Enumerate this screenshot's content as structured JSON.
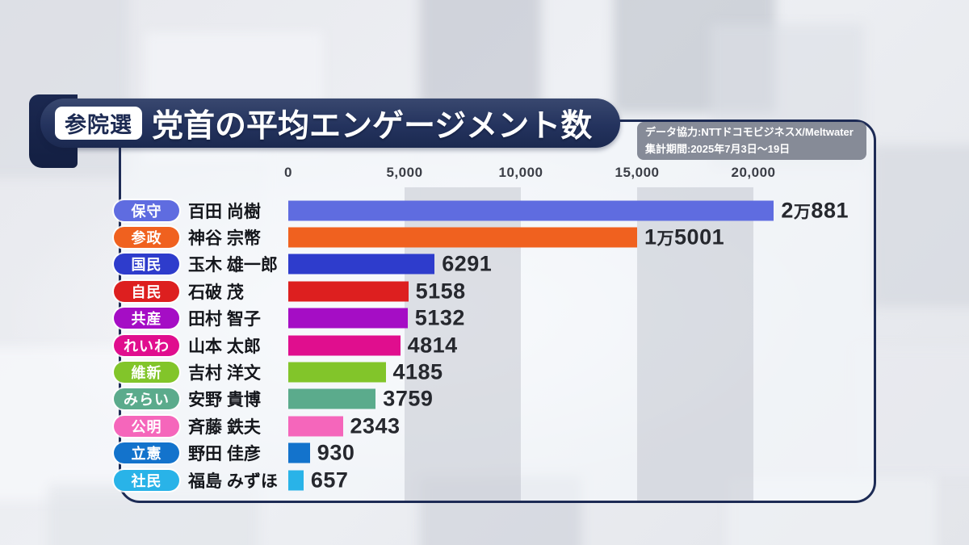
{
  "header": {
    "badge": "参院選",
    "title": "党首の平均エンゲージメント数"
  },
  "credit": {
    "line1": "データ協力:NTTドコモビジネスX/Meltwater",
    "line2": "集計期間:2025年7月3日〜19日"
  },
  "chart_data": {
    "type": "bar",
    "orientation": "horizontal",
    "title": "党首の平均エンゲージメント数",
    "axis": {
      "min": 0,
      "max": 20000,
      "ticks": [
        0,
        5000,
        10000,
        15000,
        20000
      ],
      "tick_labels": [
        "0",
        "5,000",
        "10,000",
        "15,000",
        "20,000"
      ]
    },
    "rows": [
      {
        "party": "保守",
        "leader": "百田 尚樹",
        "value": 20881,
        "value_display": "2万881",
        "color": "#5f6ce0"
      },
      {
        "party": "参政",
        "leader": "神谷 宗幣",
        "value": 15001,
        "value_display": "1万5001",
        "color": "#f0611f"
      },
      {
        "party": "国民",
        "leader": "玉木 雄一郎",
        "value": 6291,
        "value_display": "6291",
        "color": "#2e3ccc"
      },
      {
        "party": "自民",
        "leader": "石破 茂",
        "value": 5158,
        "value_display": "5158",
        "color": "#dd1f1f"
      },
      {
        "party": "共産",
        "leader": "田村 智子",
        "value": 5132,
        "value_display": "5132",
        "color": "#a50dc5"
      },
      {
        "party": "れいわ",
        "leader": "山本 太郎",
        "value": 4814,
        "value_display": "4814",
        "color": "#e00e8e"
      },
      {
        "party": "維新",
        "leader": "吉村 洋文",
        "value": 4185,
        "value_display": "4185",
        "color": "#82c52a"
      },
      {
        "party": "みらい",
        "leader": "安野 貴博",
        "value": 3759,
        "value_display": "3759",
        "color": "#5bab8c"
      },
      {
        "party": "公明",
        "leader": "斉藤 鉄夫",
        "value": 2343,
        "value_display": "2343",
        "color": "#f566bb"
      },
      {
        "party": "立憲",
        "leader": "野田 佳彦",
        "value": 930,
        "value_display": "930",
        "color": "#1373cc"
      },
      {
        "party": "社民",
        "leader": "福島 みずほ",
        "value": 657,
        "value_display": "657",
        "color": "#29b3e8"
      }
    ]
  },
  "colors": {
    "titlebar_navy": "#24335e",
    "panel_border": "#1d2b55",
    "gridband": "#9ea3af",
    "value_text": "#26282e"
  }
}
